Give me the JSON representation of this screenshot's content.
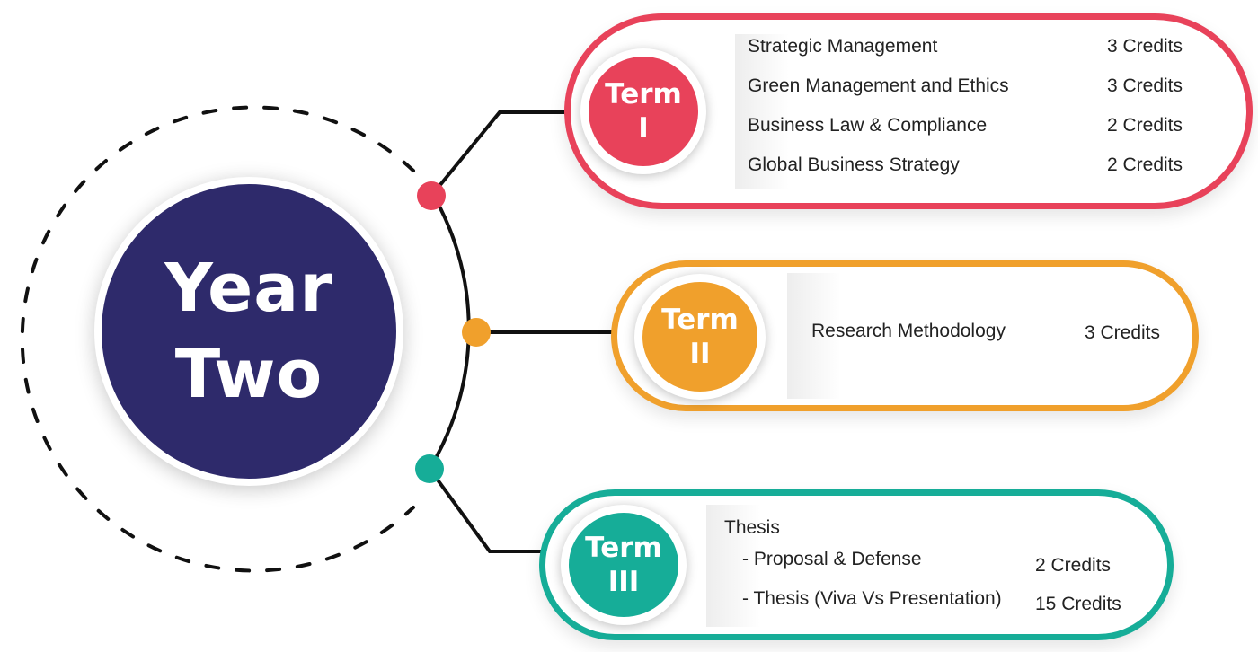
{
  "year": {
    "line1": "Year",
    "line2": "Two",
    "color": "#2e2a6b"
  },
  "terms": [
    {
      "word": "Term",
      "numeral": "I",
      "color": "#e8425a",
      "courses": [
        {
          "name": "Strategic Management",
          "credits": "3 Credits"
        },
        {
          "name": "Green Management and Ethics",
          "credits": "3 Credits"
        },
        {
          "name": "Business Law & Compliance",
          "credits": "2 Credits"
        },
        {
          "name": "Global Business Strategy",
          "credits": "2 Credits"
        }
      ]
    },
    {
      "word": "Term",
      "numeral": "II",
      "color": "#f0a02c",
      "courses": [
        {
          "name": "Research Methodology",
          "credits": "3 Credits"
        }
      ]
    },
    {
      "word": "Term",
      "numeral": "III",
      "color": "#16ad98",
      "heading": "Thesis",
      "courses": [
        {
          "name": "- Proposal & Defense",
          "credits": "2 Credits"
        },
        {
          "name": "- Thesis (Viva Vs Presentation)",
          "credits": "15 Credits"
        }
      ]
    }
  ],
  "connector_color": "#111111"
}
